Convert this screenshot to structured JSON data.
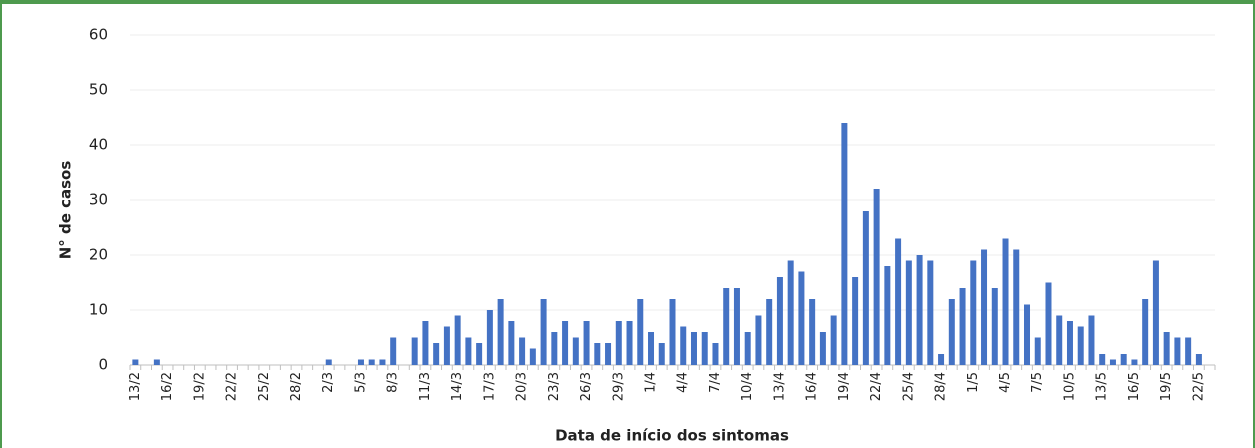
{
  "chart_data": {
    "type": "bar",
    "xlabel": "Data de início dos sintomas",
    "ylabel": "N° de casos",
    "color": "#4472c4",
    "grid": true,
    "ylim": [
      0,
      60
    ],
    "yticks": [
      0,
      10,
      20,
      30,
      40,
      50,
      60
    ],
    "categories": [
      "13/2",
      null,
      null,
      "16/2",
      null,
      null,
      "19/2",
      null,
      null,
      "22/2",
      null,
      null,
      "25/2",
      null,
      null,
      "28/2",
      null,
      null,
      "2/3",
      null,
      null,
      "5/3",
      null,
      null,
      "8/3",
      null,
      null,
      "11/3",
      null,
      null,
      "14/3",
      null,
      null,
      "17/3",
      null,
      null,
      "20/3",
      null,
      null,
      "23/3",
      null,
      null,
      "26/3",
      null,
      null,
      "29/3",
      null,
      null,
      "1/4",
      null,
      null,
      "4/4",
      null,
      null,
      "7/4",
      null,
      null,
      "10/4",
      null,
      null,
      "13/4",
      null,
      null,
      "16/4",
      null,
      null,
      "19/4",
      null,
      null,
      "22/4",
      null,
      null,
      "25/4",
      null,
      null,
      "28/4",
      null,
      null,
      "1/5",
      null,
      null,
      "4/5",
      null,
      null,
      "7/5",
      null,
      null,
      "10/5",
      null,
      null,
      "13/5",
      null,
      null,
      "16/5",
      null,
      null,
      "19/5",
      null,
      null,
      "22/5",
      null
    ],
    "values": [
      1,
      0,
      1,
      0,
      0,
      0,
      0,
      0,
      0,
      0,
      0,
      0,
      0,
      0,
      0,
      0,
      0,
      0,
      1,
      0,
      0,
      1,
      1,
      1,
      5,
      0,
      5,
      8,
      4,
      7,
      9,
      5,
      4,
      10,
      12,
      8,
      5,
      3,
      12,
      6,
      8,
      5,
      8,
      4,
      4,
      8,
      8,
      12,
      6,
      4,
      12,
      7,
      6,
      6,
      4,
      14,
      14,
      6,
      9,
      12,
      16,
      19,
      17,
      12,
      6,
      9,
      44,
      16,
      28,
      32,
      18,
      23,
      19,
      20,
      19,
      2,
      12,
      14,
      19,
      21,
      14,
      23,
      21,
      11,
      5,
      15,
      9,
      8,
      7,
      9,
      2,
      1,
      2,
      1,
      12,
      19,
      6,
      5,
      5,
      2,
      0
    ]
  }
}
